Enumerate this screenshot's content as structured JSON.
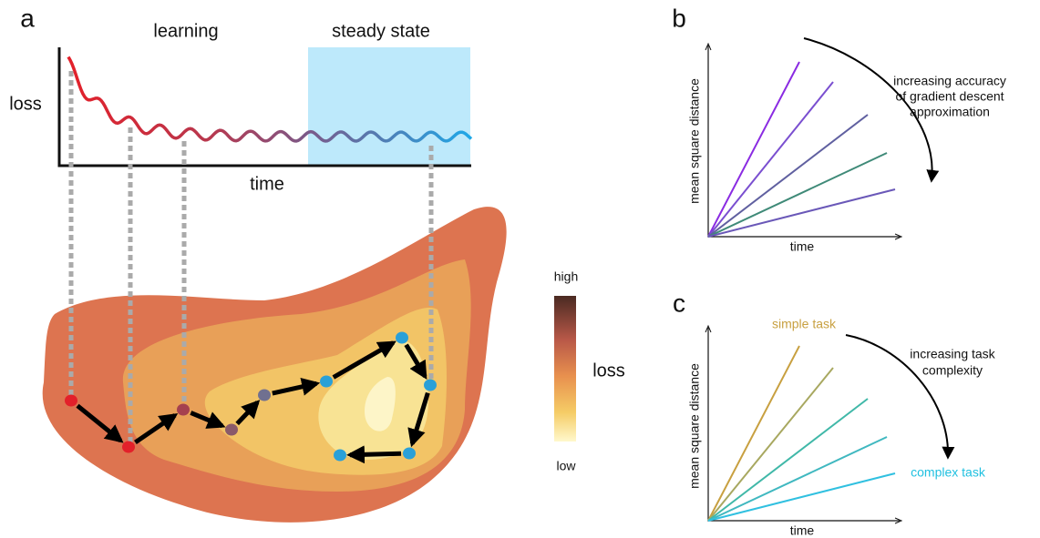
{
  "panel_a": {
    "label": "a",
    "phases": [
      "learning",
      "steady state"
    ],
    "y_label": "loss",
    "x_label": "time",
    "colorbar": {
      "high": "high",
      "label": "loss",
      "low": "low"
    }
  },
  "panel_b": {
    "label": "b",
    "y_label": "mean square distance",
    "x_label": "time",
    "annotation": [
      "increasing accuracy",
      "of gradient descent",
      "approximation"
    ]
  },
  "panel_c": {
    "label": "c",
    "y_label": "mean square distance",
    "x_label": "time",
    "annotation": [
      "increasing task",
      "complexity"
    ],
    "start_label": "simple task",
    "end_label": "complex task"
  }
}
